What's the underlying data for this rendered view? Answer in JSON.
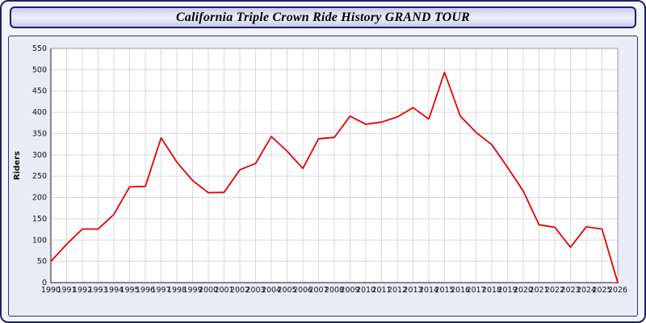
{
  "page": {
    "background": "#f3f3fb",
    "border_color": "#1f2060"
  },
  "header": {
    "title": "California Triple Crown Ride History GRAND TOUR"
  },
  "chart_data": {
    "type": "line",
    "title": "California Triple Crown Ride History GRAND TOUR",
    "xlabel": "",
    "ylabel": "Riders",
    "ylim": [
      0,
      550
    ],
    "ytick_step": 50,
    "grid": true,
    "legend": "none",
    "line_color": "#e60000",
    "plot_bg": "#ffffff",
    "grid_color": "#d9d9d9",
    "axis_color": "#444444",
    "x": [
      1990,
      1991,
      1992,
      1993,
      1994,
      1995,
      1996,
      1997,
      1998,
      1999,
      2000,
      2001,
      2002,
      2003,
      2004,
      2005,
      2006,
      2007,
      2008,
      2009,
      2010,
      2011,
      2012,
      2013,
      2014,
      2015,
      2016,
      2017,
      2018,
      2019,
      2020,
      2021,
      2022,
      2023,
      2024,
      2025,
      2026
    ],
    "values": [
      50,
      90,
      126,
      126,
      160,
      225,
      226,
      340,
      283,
      240,
      211,
      212,
      265,
      280,
      343,
      309,
      268,
      338,
      341,
      391,
      372,
      377,
      389,
      411,
      384,
      494,
      391,
      353,
      324,
      271,
      215,
      136,
      130,
      83,
      131,
      126,
      0
    ]
  }
}
